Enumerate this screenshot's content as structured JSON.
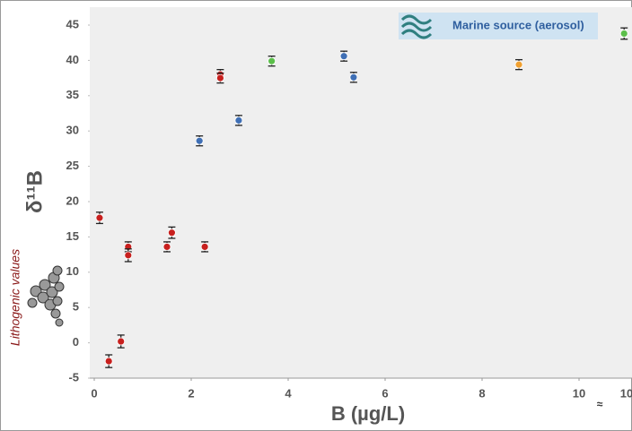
{
  "chart_data": {
    "type": "scatter",
    "x_label": "B (µg/L)",
    "y_label": "δ¹¹B",
    "annotations": [
      "Marine source (aerosol)",
      "Lithogenic values",
      "≈",
      "10"
    ],
    "xlim": [
      0,
      11
    ],
    "xticks": [
      0,
      2,
      4,
      6,
      8,
      10
    ],
    "ylim": [
      -5,
      45
    ],
    "yticks": [
      -5,
      0,
      5,
      10,
      15,
      20,
      25,
      30,
      35,
      40,
      45
    ],
    "series": [
      {
        "color": "#c8201e",
        "x": [
          0.11,
          0.3,
          0.55,
          0.7,
          0.7,
          1.5,
          1.6,
          2.28,
          2.6,
          2.6
        ],
        "values": [
          17.7,
          -2.6,
          0.2,
          13.6,
          12.4,
          13.6,
          15.6,
          13.6,
          38,
          37.5
        ],
        "errors": [
          0.8,
          0.9,
          0.9,
          0.7,
          0.9,
          0.7,
          0.8,
          0.7,
          0.7,
          0.7
        ]
      },
      {
        "color": "#3f6fb5",
        "x": [
          2.17,
          2.98,
          5.15,
          5.35
        ],
        "values": [
          28.6,
          31.5,
          40.6,
          37.6
        ],
        "errors": [
          0.7,
          0.7,
          0.7,
          0.7
        ]
      },
      {
        "color": "#5bbf4a",
        "x": [
          3.66,
          10.93
        ],
        "values": [
          39.9,
          43.8
        ],
        "errors": [
          0.7,
          0.8
        ]
      },
      {
        "color": "#f0a030",
        "x": [
          8.76
        ],
        "values": [
          39.4
        ],
        "errors": [
          0.7
        ]
      }
    ]
  }
}
